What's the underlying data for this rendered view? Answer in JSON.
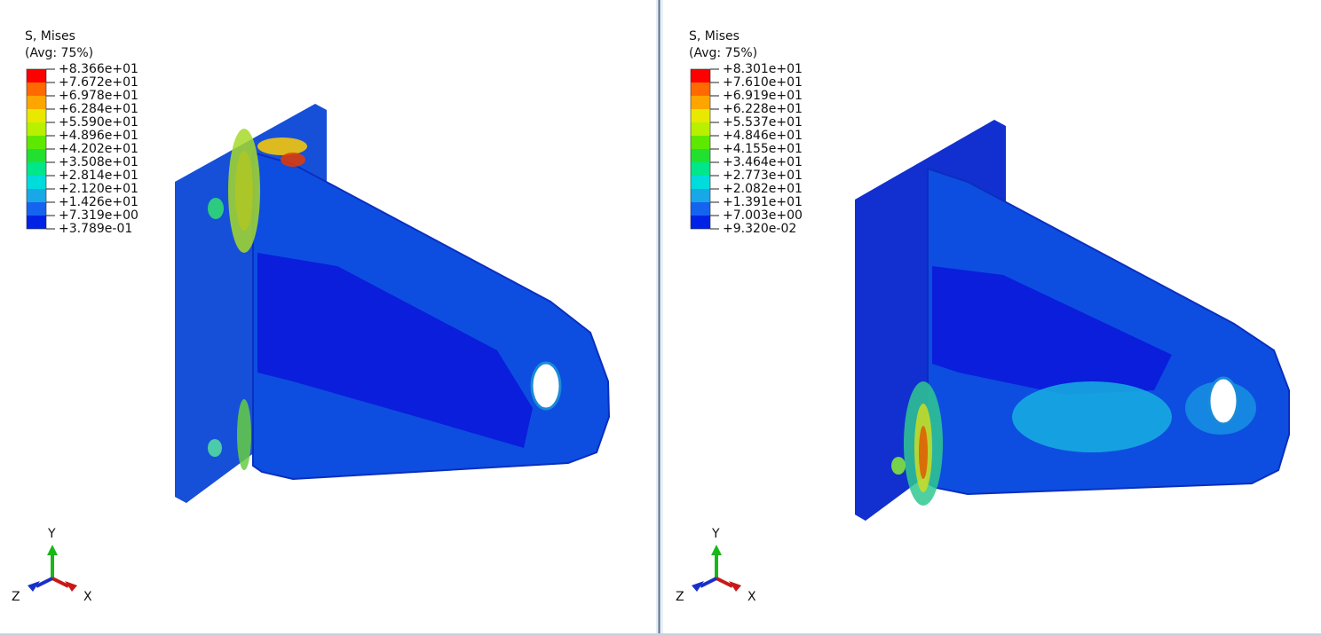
{
  "viewports": [
    {
      "legend": {
        "title": "S, Mises",
        "subtitle": "(Avg: 75%)",
        "labels": [
          "+8.366e+01",
          "+7.672e+01",
          "+6.978e+01",
          "+6.284e+01",
          "+5.590e+01",
          "+4.896e+01",
          "+4.202e+01",
          "+3.508e+01",
          "+2.814e+01",
          "+2.120e+01",
          "+1.426e+01",
          "+7.319e+00",
          "+3.789e-01"
        ]
      },
      "triad": {
        "y": "Y",
        "z": "Z",
        "x": "X"
      }
    },
    {
      "legend": {
        "title": "S, Mises",
        "subtitle": "(Avg: 75%)",
        "labels": [
          "+8.301e+01",
          "+7.610e+01",
          "+6.919e+01",
          "+6.228e+01",
          "+5.537e+01",
          "+4.846e+01",
          "+4.155e+01",
          "+3.464e+01",
          "+2.773e+01",
          "+2.082e+01",
          "+1.391e+01",
          "+7.003e+00",
          "+9.320e-02"
        ]
      },
      "triad": {
        "y": "Y",
        "z": "Z",
        "x": "X"
      }
    }
  ]
}
